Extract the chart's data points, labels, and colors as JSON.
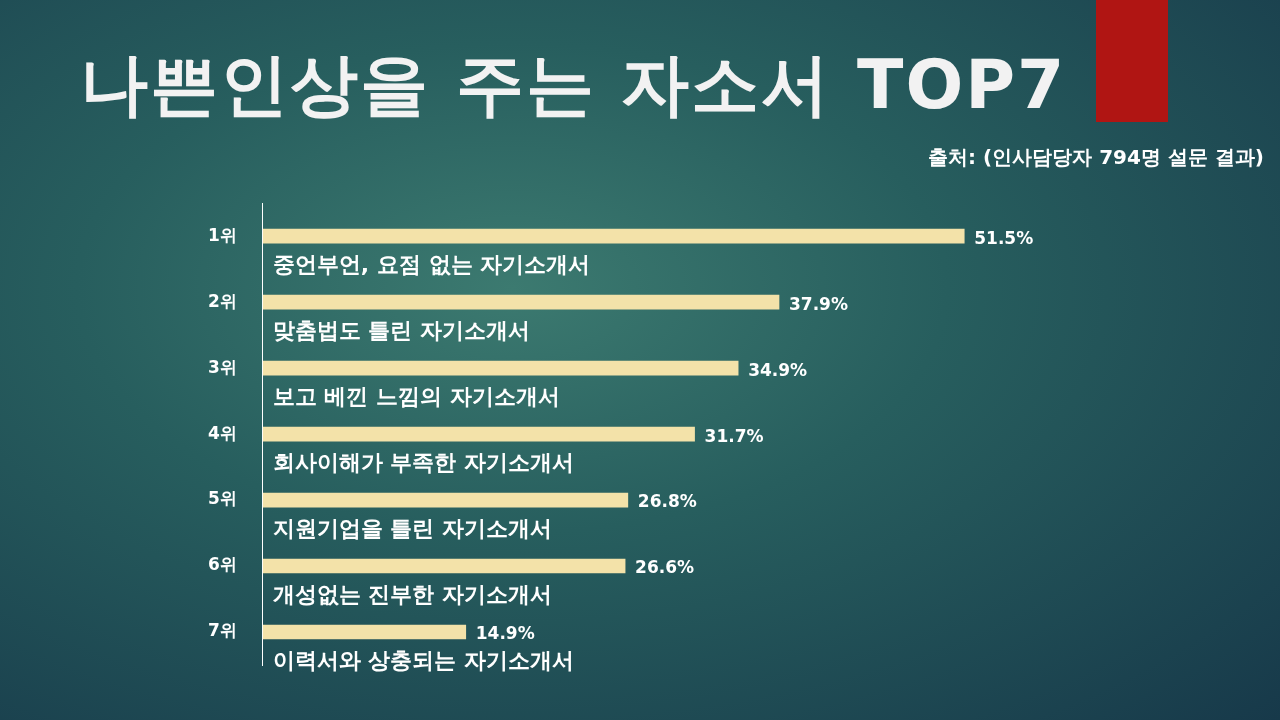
{
  "chart_data": {
    "type": "bar",
    "orientation": "horizontal",
    "title": "나쁜인상을 주는 자소서 TOP7",
    "categories": [
      "1위",
      "2위",
      "3위",
      "4위",
      "5위",
      "6위",
      "7위"
    ],
    "values": [
      51.5,
      37.9,
      34.9,
      31.7,
      26.8,
      26.6,
      14.9
    ],
    "value_labels": [
      "51.5%",
      "37.9%",
      "34.9%",
      "31.7%",
      "26.8%",
      "26.6%",
      "14.9%"
    ],
    "color": "#f3e2a9",
    "annotations": [
      "출처: (인사담당자 794명 설문 결과)",
      "중언부언, 요점 없는 자기소개서",
      "맞춤법도 틀린 자기소개서",
      "보고 베낀 느낌의 자기소개서",
      "회사이해가 부족한 자기소개서",
      "지원기업을 틀린 자기소개서",
      "개성없는 진부한 자기소개서",
      "이력서와 상충되는 자기소개서"
    ]
  }
}
